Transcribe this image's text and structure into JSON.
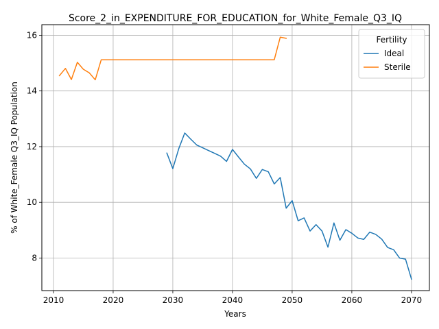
{
  "chart_data": {
    "type": "line",
    "title": "Score_2_in_EXPENDITURE_FOR_EDUCATION_for_White_Female_Q3_IQ",
    "xlabel": "Years",
    "ylabel": "% of White_Female Q3_IQ Population",
    "xlim": [
      2008.05,
      2073.0
    ],
    "ylim": [
      6.83,
      16.38
    ],
    "xticks": [
      2010,
      2020,
      2030,
      2040,
      2050,
      2060,
      2070
    ],
    "yticks": [
      8,
      10,
      12,
      14,
      16
    ],
    "grid": true,
    "legend": {
      "title": "Fertility",
      "placement": "top-right"
    },
    "series": [
      {
        "name": "Ideal",
        "color": "#1f77b4",
        "x": [
          2029,
          2030,
          2031,
          2032,
          2033,
          2034,
          2035,
          2036,
          2037,
          2038,
          2039,
          2040,
          2041,
          2042,
          2043,
          2044,
          2045,
          2046,
          2047,
          2048,
          2049,
          2050,
          2051,
          2052,
          2053,
          2054,
          2055,
          2056,
          2057,
          2058,
          2059,
          2060,
          2061,
          2062,
          2063,
          2064,
          2065,
          2066,
          2067,
          2068,
          2069,
          2070
        ],
        "y": [
          11.77,
          11.21,
          11.93,
          12.49,
          12.27,
          12.06,
          11.96,
          11.86,
          11.76,
          11.66,
          11.47,
          11.9,
          11.63,
          11.37,
          11.2,
          10.86,
          11.18,
          11.1,
          10.66,
          10.89,
          9.79,
          10.06,
          9.34,
          9.44,
          8.97,
          9.2,
          8.97,
          8.39,
          9.26,
          8.64,
          9.02,
          8.89,
          8.72,
          8.67,
          8.93,
          8.85,
          8.68,
          8.38,
          8.3,
          8.0,
          7.96,
          7.24
        ]
      },
      {
        "name": "Sterile",
        "color": "#ff7f0e",
        "x": [
          2011,
          2012,
          2013,
          2014,
          2015,
          2016,
          2017,
          2018,
          2019,
          2020,
          2021,
          2022,
          2023,
          2024,
          2025,
          2026,
          2027,
          2028,
          2029,
          2030,
          2031,
          2032,
          2033,
          2034,
          2035,
          2036,
          2037,
          2038,
          2039,
          2040,
          2041,
          2042,
          2043,
          2044,
          2045,
          2046,
          2047,
          2048,
          2049
        ],
        "y": [
          14.55,
          14.81,
          14.41,
          15.03,
          14.78,
          14.65,
          14.4,
          15.12,
          15.12,
          15.12,
          15.12,
          15.12,
          15.12,
          15.12,
          15.12,
          15.12,
          15.12,
          15.12,
          15.12,
          15.12,
          15.12,
          15.12,
          15.12,
          15.12,
          15.12,
          15.12,
          15.12,
          15.12,
          15.12,
          15.12,
          15.12,
          15.12,
          15.12,
          15.12,
          15.12,
          15.12,
          15.12,
          15.93,
          15.89
        ]
      }
    ]
  }
}
